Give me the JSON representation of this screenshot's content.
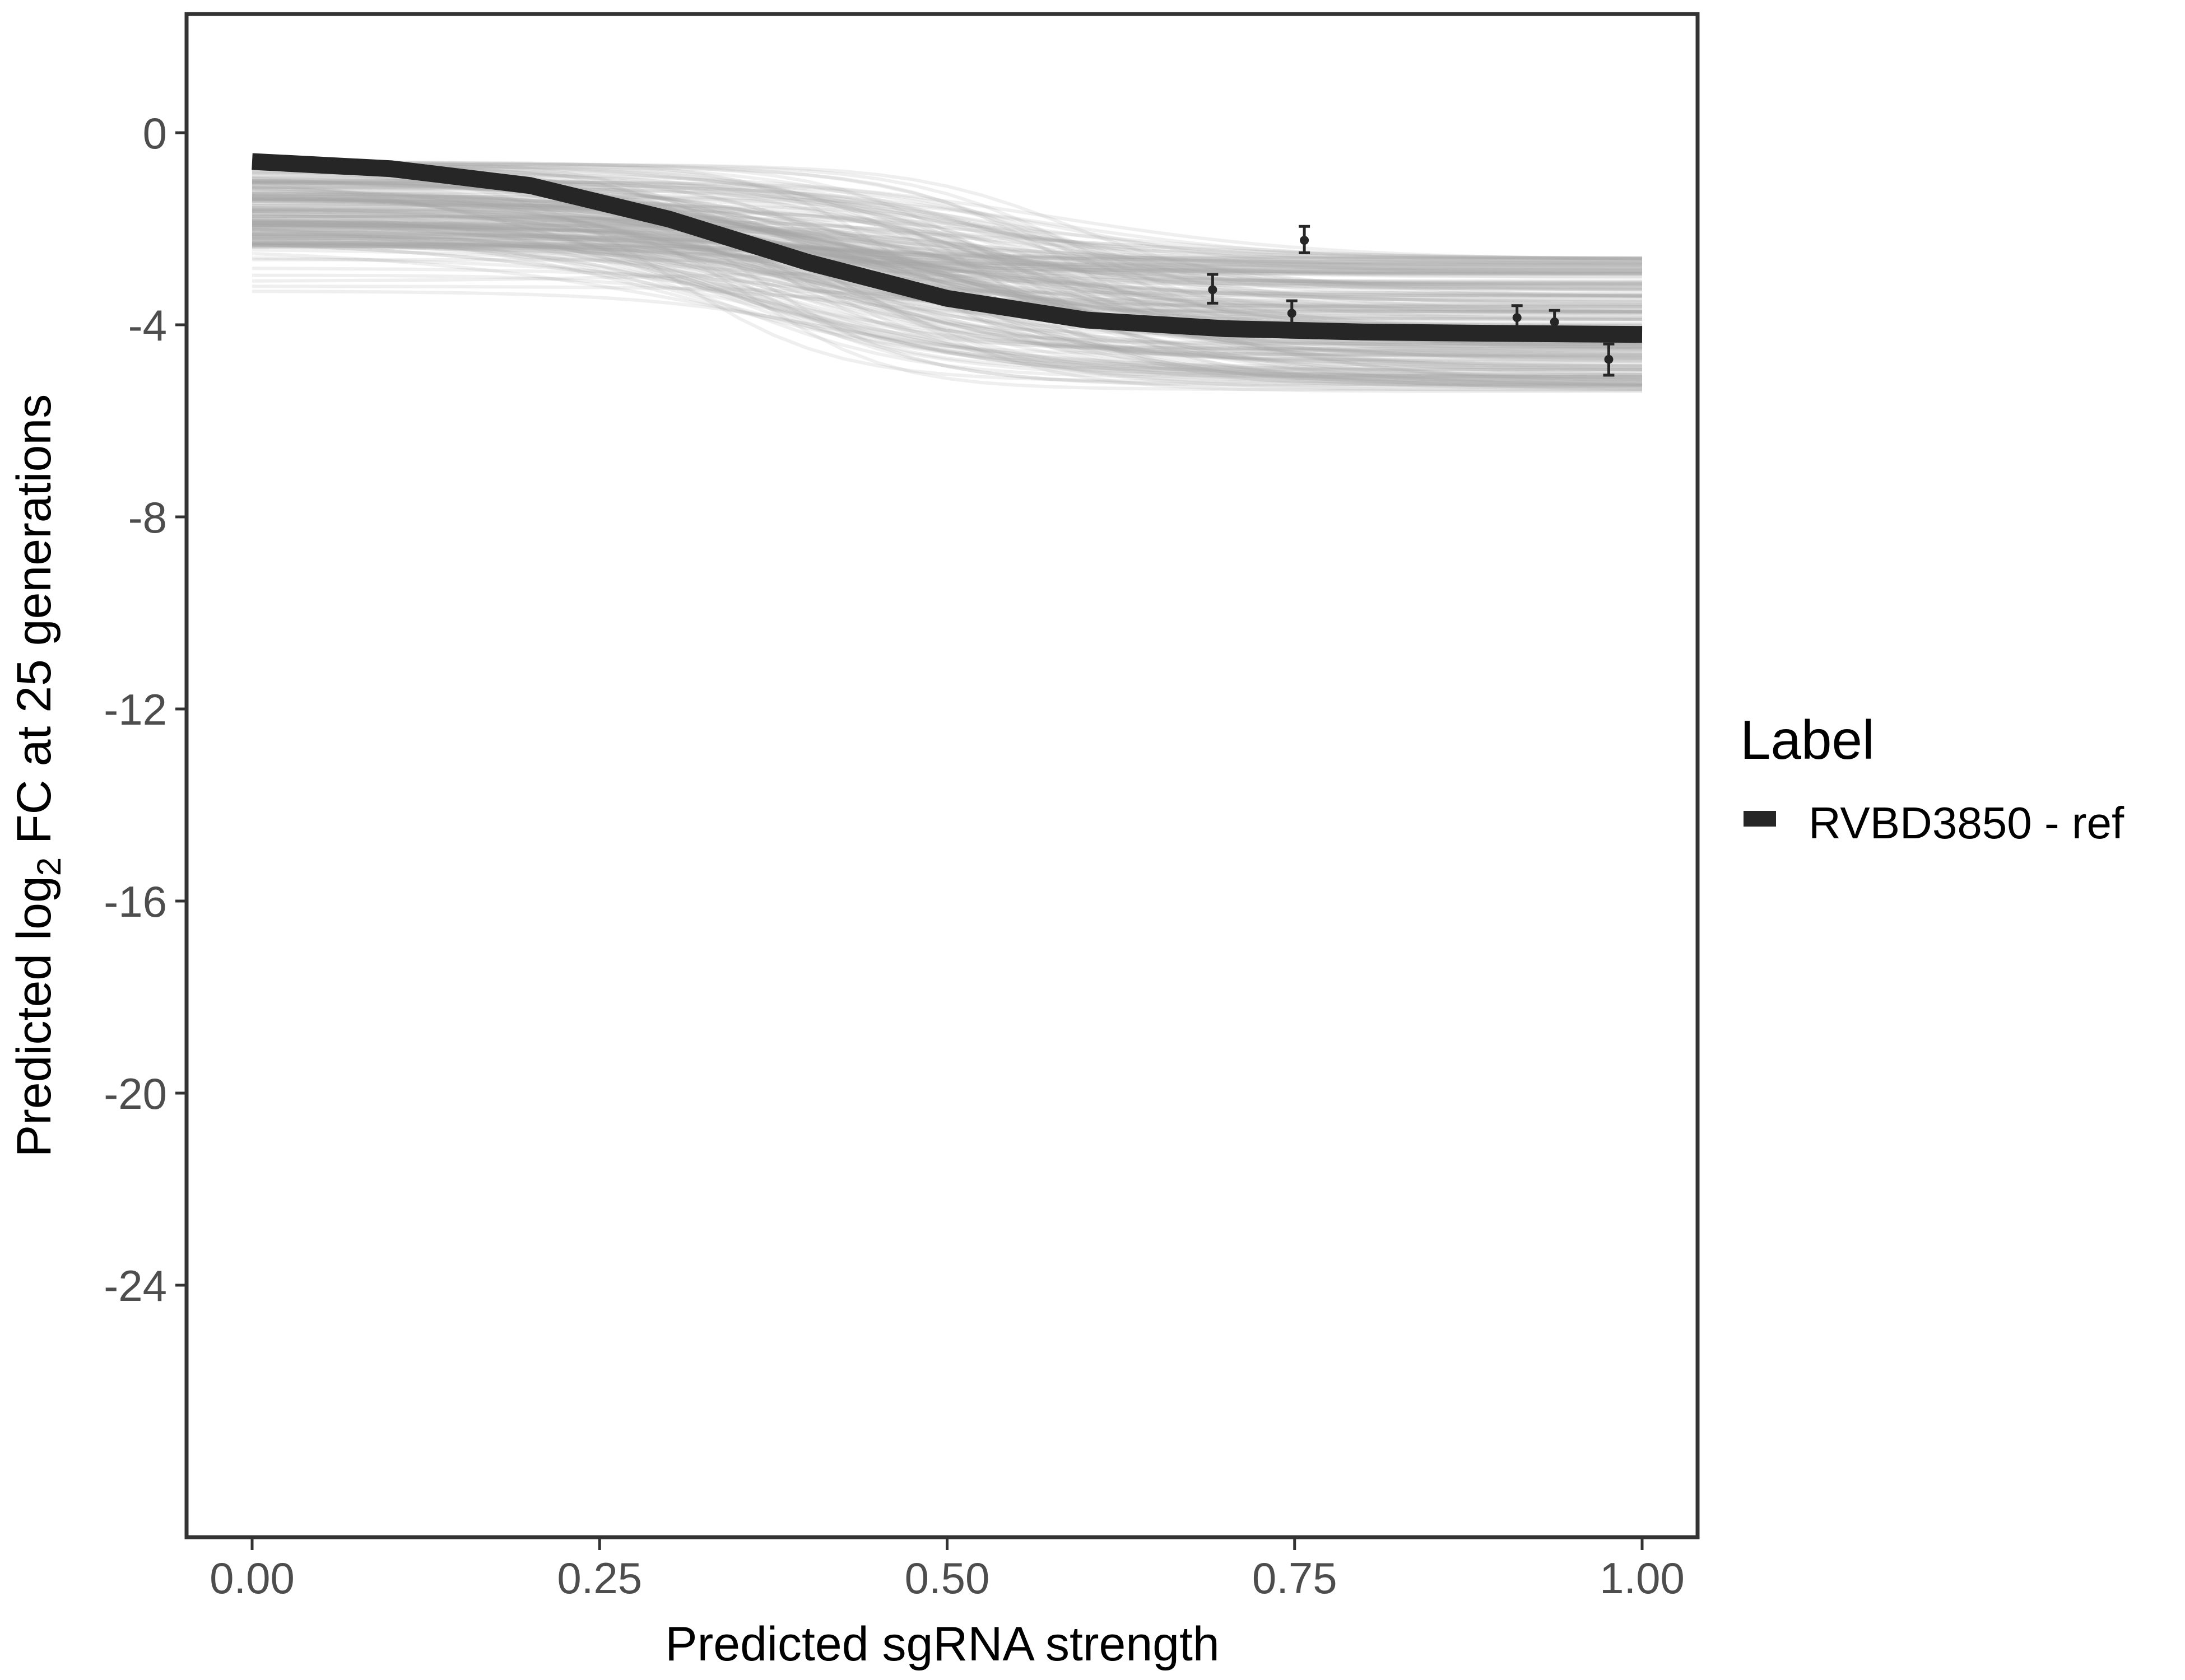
{
  "chart_data": {
    "type": "line",
    "title": "",
    "xlabel": "Predicted sgRNA strength",
    "ylabel_parts": {
      "pre": "Predicted  log",
      "sub": "2",
      "post": " FC at 25 generations"
    },
    "xlim": [
      -0.05,
      1.05
    ],
    "ylim": [
      -29.6,
      2.5
    ],
    "x_ticks": [
      0,
      0.25,
      0.5,
      0.75,
      1
    ],
    "x_tick_labels": [
      "0.00",
      "0.25",
      "0.50",
      "0.75",
      "1.00"
    ],
    "y_ticks": [
      0,
      -4,
      -8,
      -12,
      -16,
      -20,
      -24
    ],
    "y_tick_labels": [
      "0",
      "-4",
      "-8",
      "-12",
      "-16",
      "-20",
      "-24"
    ],
    "grid": false,
    "legend": {
      "title": "Label",
      "position": "right",
      "entries": [
        {
          "name": "RVBD3850 - ref",
          "color": "#262626"
        }
      ]
    },
    "series": [
      {
        "name": "RVBD3850 - ref",
        "kind": "logistic-fit",
        "color": "#262626",
        "x": [
          0,
          0.1,
          0.2,
          0.3,
          0.4,
          0.5,
          0.6,
          0.7,
          0.8,
          0.9,
          1.0
        ],
        "y": [
          -0.6,
          -0.75,
          -1.1,
          -1.8,
          -2.7,
          -3.45,
          -3.9,
          -4.08,
          -4.15,
          -4.18,
          -4.2
        ]
      }
    ],
    "posterior_draws": {
      "color": "#a6a6a6",
      "description_visible": false
    },
    "points": [
      {
        "x": 0.691,
        "y": -3.27,
        "lo": -3.55,
        "hi": -2.95
      },
      {
        "x": 0.748,
        "y": -3.76,
        "lo": -4.05,
        "hi": -3.5
      },
      {
        "x": 0.757,
        "y": -2.24,
        "lo": -2.5,
        "hi": -1.95
      },
      {
        "x": 0.91,
        "y": -3.85,
        "lo": -4.1,
        "hi": -3.6
      },
      {
        "x": 0.937,
        "y": -3.94,
        "lo": -4.2,
        "hi": -3.7
      },
      {
        "x": 0.976,
        "y": -4.72,
        "lo": -5.05,
        "hi": -4.4
      }
    ]
  }
}
